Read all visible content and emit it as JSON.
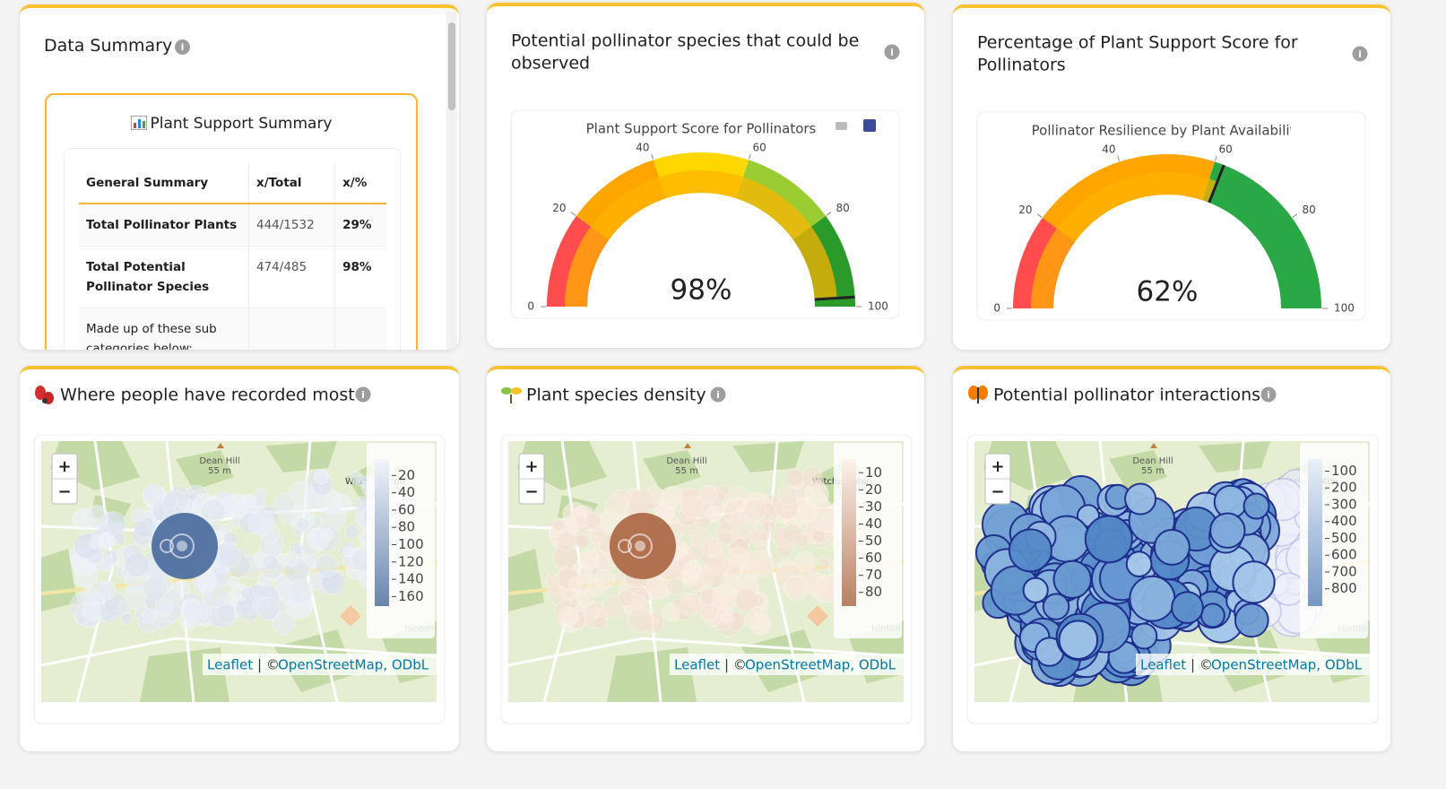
{
  "summary": {
    "title": "Data Summary",
    "box_title": "Plant Support Summary",
    "table": {
      "header": [
        "General Summary",
        "x/Total",
        "x/%"
      ],
      "rows": [
        [
          "Total Pollinator Plants",
          "444/1532",
          "29%"
        ],
        [
          "Total Potential Pollinator Species",
          "474/485",
          "98%"
        ],
        [
          "Made up of these sub categories below:"
        ]
      ]
    }
  },
  "gauges": [
    {
      "type": "gauge",
      "heading": [
        "Potential pollinator species that could be",
        "observed"
      ],
      "title": "Plant Support Score for Pollinators",
      "value": 98,
      "value_label": "98%",
      "range": [
        0,
        100
      ],
      "ticks": [
        0,
        20,
        40,
        60,
        80,
        100
      ],
      "bar_color": "#ffb300",
      "steps": [
        {
          "range": [
            0,
            20
          ],
          "color": "#ff4d4d"
        },
        {
          "range": [
            20,
            40
          ],
          "color": "#ffa500"
        },
        {
          "range": [
            40,
            60
          ],
          "color": "#ffd700"
        },
        {
          "range": [
            60,
            80
          ],
          "color": "#9acd32"
        },
        {
          "range": [
            80,
            100
          ],
          "color": "#2a9a2a"
        }
      ]
    },
    {
      "type": "gauge",
      "heading": [
        "Percentage of Plant Support Score for",
        "Pollinators"
      ],
      "title": "Pollinator Resilience by Plant Availability",
      "value": 62,
      "value_label": "62%",
      "range": [
        0,
        100
      ],
      "ticks": [
        0,
        20,
        40,
        60,
        80,
        100
      ],
      "bar_color": "#ffb300",
      "steps": [
        {
          "range": [
            0,
            20
          ],
          "color": "#ff4d4d"
        },
        {
          "range": [
            20,
            60
          ],
          "color": "#ffa500"
        },
        {
          "range": [
            60,
            100
          ],
          "color": "#2aa845"
        }
      ]
    }
  ],
  "maps": [
    {
      "type": "map",
      "title": "Where people have recorded most",
      "colorbar": {
        "range": [
          1,
          171
        ],
        "ticks": [
          20,
          40,
          60,
          80,
          100,
          120,
          140,
          160
        ],
        "colorscale": [
          "#f0f5fc",
          "#4f6f9f"
        ]
      }
    },
    {
      "type": "map",
      "title": "Plant species density",
      "colorbar": {
        "range": [
          2,
          88
        ],
        "ticks": [
          10,
          20,
          30,
          40,
          50,
          60,
          70,
          80
        ],
        "colorscale": [
          "#fdf1e7",
          "#ad6a48"
        ]
      }
    },
    {
      "type": "map",
      "title": "Potential pollinator interactions",
      "colorbar": {
        "range": [
          28,
          903
        ],
        "ticks": [
          100,
          200,
          300,
          400,
          500,
          600,
          700,
          800
        ],
        "colorscale": [
          "#e6effa",
          "#5f86bb"
        ]
      }
    }
  ],
  "map_labels": {
    "hill": "Dean Hill",
    "elevation": "55 m",
    "village": "Witchampton",
    "village2": "Hinton"
  },
  "map_controls": {
    "zoom_in": "+",
    "zoom_out": "−"
  },
  "attribution": {
    "leaflet": "Leaflet",
    "separator": "| ©",
    "osm": "OpenStreetMap, ODbL"
  }
}
